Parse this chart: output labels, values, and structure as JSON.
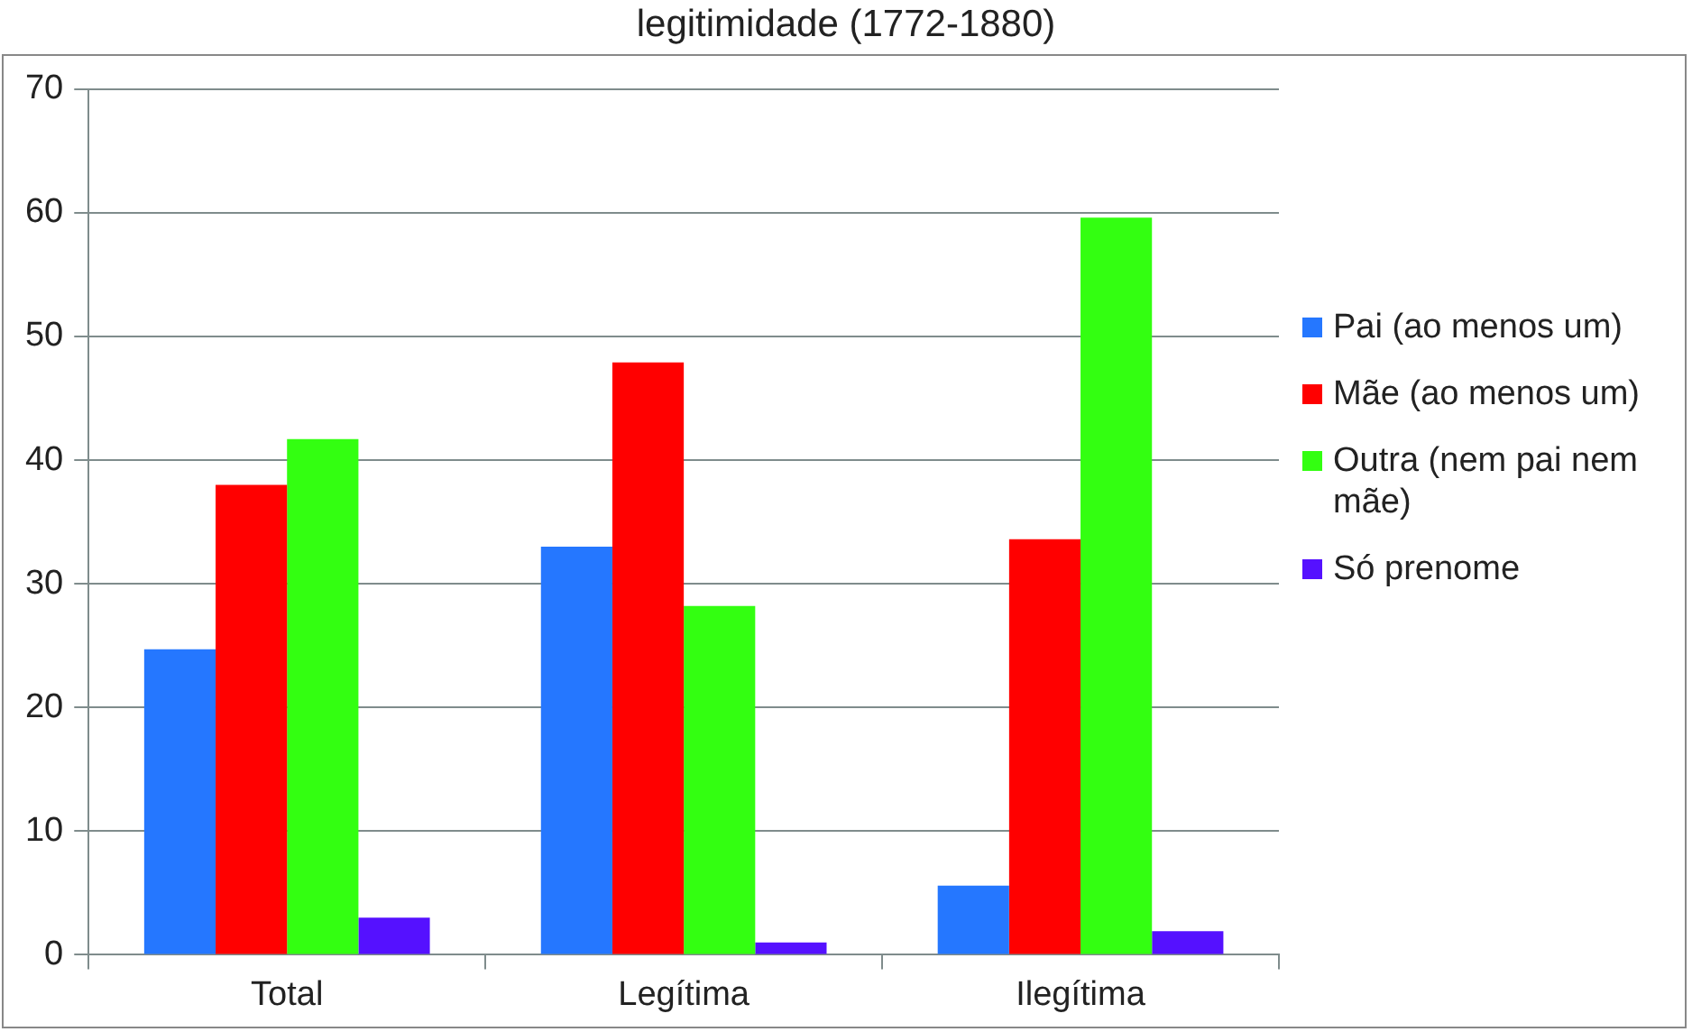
{
  "chart_data": {
    "type": "bar",
    "title": "legitimidade (1772-1880)",
    "categories": [
      "Total",
      "Legítima",
      "Ilegítima"
    ],
    "series": [
      {
        "name": "Pai (ao menos um)",
        "color": "#2577ff",
        "values": [
          24.7,
          33.0,
          5.6
        ]
      },
      {
        "name": "Mãe (ao menos um)",
        "color": "#ff0000",
        "values": [
          38.0,
          47.9,
          33.6
        ]
      },
      {
        "name": "Outra (nem pai nem mãe)",
        "color": "#33ff11",
        "values": [
          41.7,
          28.2,
          59.6
        ]
      },
      {
        "name": "Só prenome",
        "color": "#5511ff",
        "values": [
          3.0,
          1.0,
          1.9
        ]
      }
    ],
    "ylim": [
      0,
      70
    ],
    "yticks": [
      0,
      10,
      20,
      30,
      40,
      50,
      60,
      70
    ],
    "grid": "y",
    "legend": "right"
  }
}
